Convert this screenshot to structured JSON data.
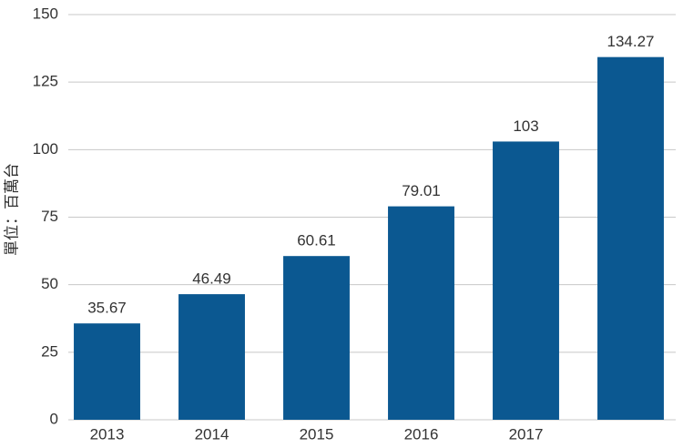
{
  "chart_data": {
    "type": "bar",
    "y_label": "單位：百萬台",
    "categories": [
      "2013",
      "2014",
      "2015",
      "2016",
      "2017",
      null
    ],
    "values": [
      35.67,
      46.49,
      60.61,
      79.01,
      103,
      134.27
    ],
    "color": "#0b5891",
    "ylim": [
      0,
      150
    ],
    "yticks": [
      0,
      25,
      50,
      75,
      100,
      125,
      150
    ],
    "grid": true
  }
}
